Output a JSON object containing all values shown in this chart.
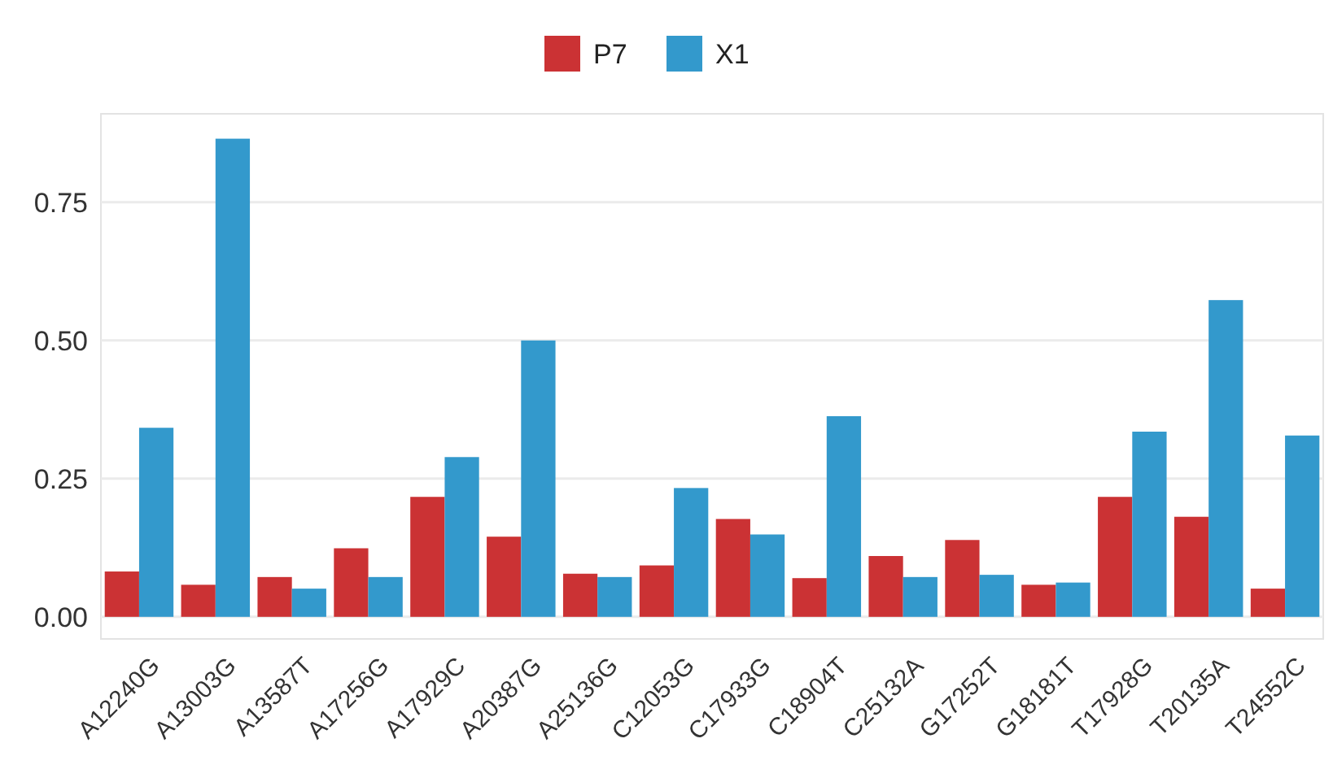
{
  "chart_data": {
    "type": "bar",
    "categories": [
      "A12240G",
      "A13003G",
      "A13587T",
      "A17256G",
      "A17929C",
      "A20387G",
      "A25136G",
      "C12053G",
      "C17933G",
      "C18904T",
      "C25132A",
      "G17252T",
      "G18181T",
      "T17928G",
      "T20135A",
      "T24552C"
    ],
    "series": [
      {
        "name": "P7",
        "color": "#cb3234",
        "values": [
          0.082,
          0.058,
          0.072,
          0.124,
          0.217,
          0.145,
          0.078,
          0.093,
          0.177,
          0.07,
          0.11,
          0.139,
          0.058,
          0.217,
          0.181,
          0.051
        ]
      },
      {
        "name": "X1",
        "color": "#3399cc",
        "values": [
          0.342,
          0.865,
          0.051,
          0.072,
          0.289,
          0.5,
          0.072,
          0.233,
          0.149,
          0.363,
          0.072,
          0.076,
          0.062,
          0.335,
          0.573,
          0.328
        ]
      }
    ],
    "ylim": [
      -0.04,
      0.91
    ],
    "yticks": [
      {
        "value": 0,
        "label": "0.00"
      },
      {
        "value": 0.25,
        "label": "0.25"
      },
      {
        "value": 0.5,
        "label": "0.50"
      },
      {
        "value": 0.75,
        "label": "0.75"
      }
    ],
    "grid": "y",
    "legend": "top"
  }
}
